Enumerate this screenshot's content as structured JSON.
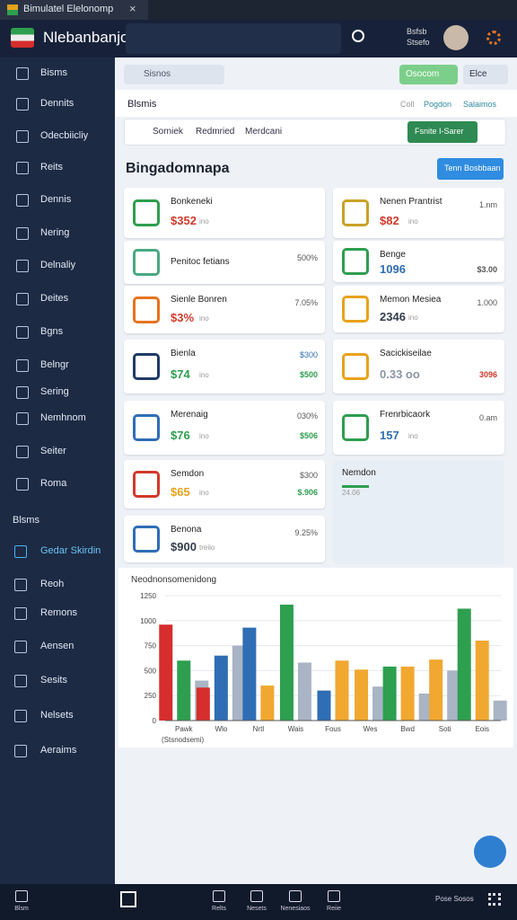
{
  "tab": {
    "title": "Bimulatel Elelonomp"
  },
  "header": {
    "title": "Nlebanbanjo",
    "user_line1": "Bsfsb",
    "user_line2": "Stsefo"
  },
  "sidebar": {
    "items": [
      "Bisms",
      "Dennits",
      "Odecbiicliy",
      "Reits",
      "Dennis",
      "Nering",
      "Delnaliy",
      "Deites",
      "Bgns",
      "Belngr",
      "Sering",
      "Nemhnom",
      "Seiter",
      "Roma"
    ],
    "section": "Blsms",
    "items2": [
      "Gedar Skirdin",
      "Reoh",
      "Remons",
      "Aensen",
      "Sesits",
      "Nelsets",
      "Aeraims"
    ]
  },
  "toolbar": {
    "search": "Sisnos",
    "button": "Osocom",
    "menu": "Elce"
  },
  "subbar": {
    "title": "Blsmis",
    "tabs": [
      "Coll",
      "Pogdon",
      "Salaimos"
    ]
  },
  "filter": {
    "chips": [
      "Sorniek",
      "Redmried",
      "Merdcani"
    ],
    "button": "Fsnite I-Sarer"
  },
  "section": {
    "heading": "Bingadomnapa",
    "button": "Tenn Bosbbaan"
  },
  "cards": [
    {
      "col": "left",
      "title": "Bonkeneki",
      "value": "$352",
      "unit": "ino",
      "color": "#d0392b",
      "icon": "#2e9e4f"
    },
    {
      "col": "left",
      "title": "Penitoc fetians",
      "right1": "500%",
      "icon": "#4aa882"
    },
    {
      "col": "left",
      "title": "Sienle Bonren",
      "value": "$3%",
      "unit": "ino",
      "right1": "7.05%",
      "color": "#d0392b",
      "icon": "#e8731c"
    },
    {
      "col": "left",
      "title": "Bienla",
      "value": "$74",
      "unit": "ino",
      "right1": "$300",
      "right2": "$500",
      "color": "#2e9e4f",
      "color1": "#2f6db5",
      "color2": "#2e9e4f",
      "icon": "#1f3b66"
    },
    {
      "col": "left",
      "title": "Merenaig",
      "value": "$76",
      "unit": "ino",
      "right1": "030%",
      "right2": "$506",
      "color": "#2e9e4f",
      "color2": "#2e9e4f",
      "icon": "#2f6db5"
    },
    {
      "col": "left",
      "title": "Semdon",
      "value": "$65",
      "unit": "ino",
      "right1": "$300",
      "right2": "$.906",
      "color": "#e8a21c",
      "color2": "#2e9e4f",
      "icon": "#d0392b"
    },
    {
      "col": "left",
      "title": "Benona",
      "value": "$900",
      "unit": "treiio",
      "right1": "9.25%",
      "color": "#333d4d",
      "icon": "#2f6db5"
    },
    {
      "col": "right",
      "title": "Nenen Prantrist",
      "value": "$82",
      "unit": "ino",
      "right1": "1.nm",
      "color": "#d0392b",
      "icon": "#c9a227"
    },
    {
      "col": "right",
      "title": "Benge",
      "value": "1096",
      "right2": "$3.00",
      "color": "#2f6db5",
      "icon": "#2e9e4f"
    },
    {
      "col": "right",
      "title": "Memon Mesiea",
      "value": "2346",
      "unit": "ino",
      "right1": "1.000",
      "color": "#333d4d",
      "icon": "#e8a21c"
    },
    {
      "col": "right",
      "title": "Sacickiseilae",
      "value": "0.33 oo",
      "right2": "3096",
      "color": "#8a94a4",
      "color2": "#d0392b",
      "icon": "#e8a21c"
    },
    {
      "col": "right",
      "title": "Frenrbicaork",
      "value": "157",
      "unit": "ino",
      "right1": "0.am",
      "color": "#2f6db5",
      "icon": "#2e9e4f"
    },
    {
      "col": "right",
      "plain": true,
      "title": "Nemdon",
      "unit": "24.06",
      "icon": "#2e9e4f"
    }
  ],
  "chart_data": {
    "type": "bar",
    "title": "Neodnonsomenidong",
    "x_label": "(Stsnodsemi)",
    "categories": [
      "Pawk",
      "Wlo",
      "Nrtl",
      "Wais",
      "Fous",
      "Wes",
      "Bwd",
      "Soti",
      "Eois"
    ],
    "series": [
      {
        "color": "#d62d2d",
        "values": [
          960,
          330,
          null,
          null,
          null,
          null,
          null,
          null,
          null
        ]
      },
      {
        "color": "#2f6db5",
        "values": [
          null,
          650,
          930,
          null,
          300,
          null,
          null,
          null,
          null
        ]
      },
      {
        "color": "#2e9e4f",
        "values": [
          600,
          null,
          null,
          1160,
          null,
          null,
          540,
          null,
          1120
        ]
      },
      {
        "color": "#f0a830",
        "values": [
          null,
          null,
          350,
          null,
          600,
          510,
          540,
          610,
          800
        ]
      },
      {
        "color": "#a9b4c4",
        "values": [
          400,
          750,
          null,
          580,
          null,
          340,
          270,
          500,
          200
        ]
      }
    ],
    "ylim": [
      0,
      1250
    ],
    "yticks": [
      0,
      250,
      500,
      750,
      1000,
      1250
    ],
    "grid": true
  },
  "bottom_nav": {
    "items": [
      "Blsm",
      "Relts",
      "Nesets",
      "Nenesiaos",
      "Reiie"
    ],
    "right": "Pose Sosos"
  }
}
